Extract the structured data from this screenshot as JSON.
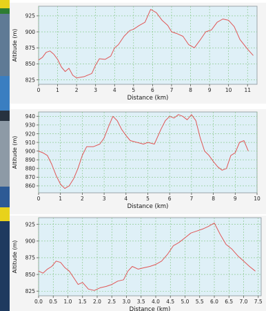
{
  "strip": {
    "colors": [
      "#e8d21b",
      "#2e7d32",
      "#5f7a95",
      "#3a7ec1",
      "#27323f",
      "#8d9aa6",
      "#2d5a95",
      "#e8d21b",
      "#1e3a5f"
    ]
  },
  "chart_data": [
    {
      "type": "line",
      "xlabel": "Distance (km)",
      "ylabel": "Altitude (m)",
      "xlim": [
        0,
        11.5
      ],
      "ylim": [
        818,
        940
      ],
      "xticks": [
        0,
        1,
        2,
        3,
        4,
        5,
        6,
        7,
        8,
        9,
        10,
        11
      ],
      "yticks": [
        825,
        850,
        875,
        900,
        925
      ],
      "grid": true,
      "background": "#dff0f7",
      "line_color": "#e05555",
      "series": [
        {
          "x": [
            0,
            0.2,
            0.4,
            0.6,
            0.8,
            1.0,
            1.2,
            1.4,
            1.6,
            1.8,
            2.0,
            2.4,
            2.8,
            3.0,
            3.2,
            3.5,
            3.8,
            4.0,
            4.2,
            4.5,
            4.8,
            5.0,
            5.3,
            5.6,
            5.9,
            6.2,
            6.5,
            6.8,
            7.0,
            7.3,
            7.6,
            7.9,
            8.2,
            8.5,
            8.8,
            9.1,
            9.4,
            9.7,
            10.0,
            10.3,
            10.6,
            11.0,
            11.3
          ],
          "y": [
            856,
            860,
            868,
            870,
            865,
            857,
            845,
            838,
            843,
            832,
            828,
            830,
            835,
            848,
            858,
            857,
            862,
            875,
            880,
            893,
            902,
            904,
            910,
            915,
            935,
            930,
            918,
            910,
            900,
            897,
            893,
            880,
            875,
            887,
            900,
            903,
            915,
            920,
            918,
            908,
            888,
            873,
            863
          ]
        }
      ]
    },
    {
      "type": "line",
      "xlabel": "Distance (km)",
      "ylabel": "Altitude (m)",
      "xlim": [
        0,
        10
      ],
      "ylim": [
        852,
        945
      ],
      "xticks": [
        0,
        1,
        2,
        3,
        4,
        5,
        6,
        7,
        8,
        9,
        10
      ],
      "yticks": [
        860,
        870,
        880,
        890,
        900,
        910,
        920,
        930,
        940
      ],
      "grid": true,
      "background": "#dff0f7",
      "line_color": "#e05555",
      "series": [
        {
          "x": [
            0,
            0.2,
            0.4,
            0.6,
            0.8,
            1.0,
            1.2,
            1.4,
            1.6,
            1.8,
            2.0,
            2.2,
            2.5,
            2.8,
            3.0,
            3.2,
            3.4,
            3.6,
            3.8,
            4.0,
            4.2,
            4.5,
            4.8,
            5.0,
            5.3,
            5.6,
            5.8,
            6.0,
            6.2,
            6.4,
            6.6,
            6.8,
            7.0,
            7.2,
            7.4,
            7.6,
            7.8,
            8.0,
            8.2,
            8.4,
            8.6,
            8.8,
            9.0,
            9.2,
            9.4,
            9.6
          ],
          "y": [
            900,
            898,
            895,
            885,
            872,
            862,
            857,
            860,
            868,
            880,
            895,
            905,
            905,
            908,
            915,
            928,
            940,
            935,
            925,
            918,
            912,
            910,
            908,
            910,
            908,
            925,
            935,
            940,
            938,
            942,
            940,
            936,
            942,
            935,
            915,
            900,
            895,
            888,
            882,
            878,
            880,
            895,
            898,
            910,
            912,
            900
          ]
        }
      ]
    },
    {
      "type": "line",
      "xlabel": "Distance (km)",
      "ylabel": "Altitude (m)",
      "xlim": [
        0,
        7.6
      ],
      "ylim": [
        818,
        935
      ],
      "xticks": [
        0.0,
        0.5,
        1.0,
        1.5,
        2.0,
        2.5,
        3.0,
        3.5,
        4.0,
        4.5,
        5.0,
        5.5,
        6.0,
        6.5,
        7.0,
        7.5
      ],
      "xticklabels": [
        "0.0",
        "0.5",
        "1.0",
        "1.5",
        "2.0",
        "2.5",
        "3.0",
        "3.5",
        "4.0",
        "4.5",
        "5.0",
        "5.5",
        "6.0",
        "6.5",
        "7.0",
        "7.5"
      ],
      "yticks": [
        825,
        850,
        875,
        900,
        925
      ],
      "grid": true,
      "background": "#dff0f7",
      "line_color": "#e05555",
      "series": [
        {
          "x": [
            0.0,
            0.15,
            0.3,
            0.45,
            0.6,
            0.75,
            0.9,
            1.05,
            1.2,
            1.35,
            1.5,
            1.7,
            1.9,
            2.1,
            2.3,
            2.5,
            2.7,
            2.9,
            3.05,
            3.2,
            3.4,
            3.6,
            3.8,
            4.0,
            4.2,
            4.4,
            4.6,
            4.8,
            5.0,
            5.2,
            5.4,
            5.6,
            5.8,
            6.0,
            6.2,
            6.4,
            6.6,
            6.8,
            7.0,
            7.2,
            7.4
          ],
          "y": [
            855,
            852,
            858,
            862,
            870,
            868,
            860,
            855,
            845,
            835,
            838,
            828,
            826,
            830,
            832,
            835,
            840,
            842,
            855,
            862,
            858,
            860,
            862,
            865,
            870,
            880,
            893,
            898,
            905,
            912,
            915,
            918,
            922,
            927,
            910,
            895,
            888,
            878,
            870,
            862,
            855
          ]
        }
      ]
    }
  ]
}
